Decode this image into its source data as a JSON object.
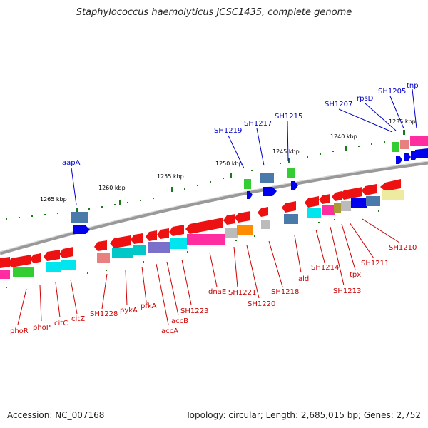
{
  "title": "Staphylococcus haemolyticus JCSC1435, complete genome",
  "accession": "Accession: NC_007168",
  "topology": "Topology: circular; Length: 2,685,015 bp; Genes: 2,752",
  "colors": {
    "forward_label": "#0000cc",
    "reverse_label": "#cc0000",
    "tick": "#1a7a1a",
    "backbone": "#888888"
  },
  "ticks": [
    "1265 kbp",
    "1260 kbp",
    "1255 kbp",
    "1250 kbp",
    "1245 kbp",
    "1240 kbp",
    "1235 kbp"
  ],
  "forward_labels": [
    "aapA",
    "SH1219",
    "SH1217",
    "SH1215",
    "SH1207",
    "rpsD",
    "SH1205",
    "tnp"
  ],
  "reverse_labels": [
    "phoR",
    "phoP",
    "citC",
    "citZ",
    "SH1228",
    "pykA",
    "pfkA",
    "accA",
    "accB",
    "SH1223",
    "dnaE",
    "SH1221",
    "SH1220",
    "SH1218",
    "ald",
    "SH1214",
    "SH1213",
    "tpx",
    "SH1211",
    "SH1210"
  ]
}
